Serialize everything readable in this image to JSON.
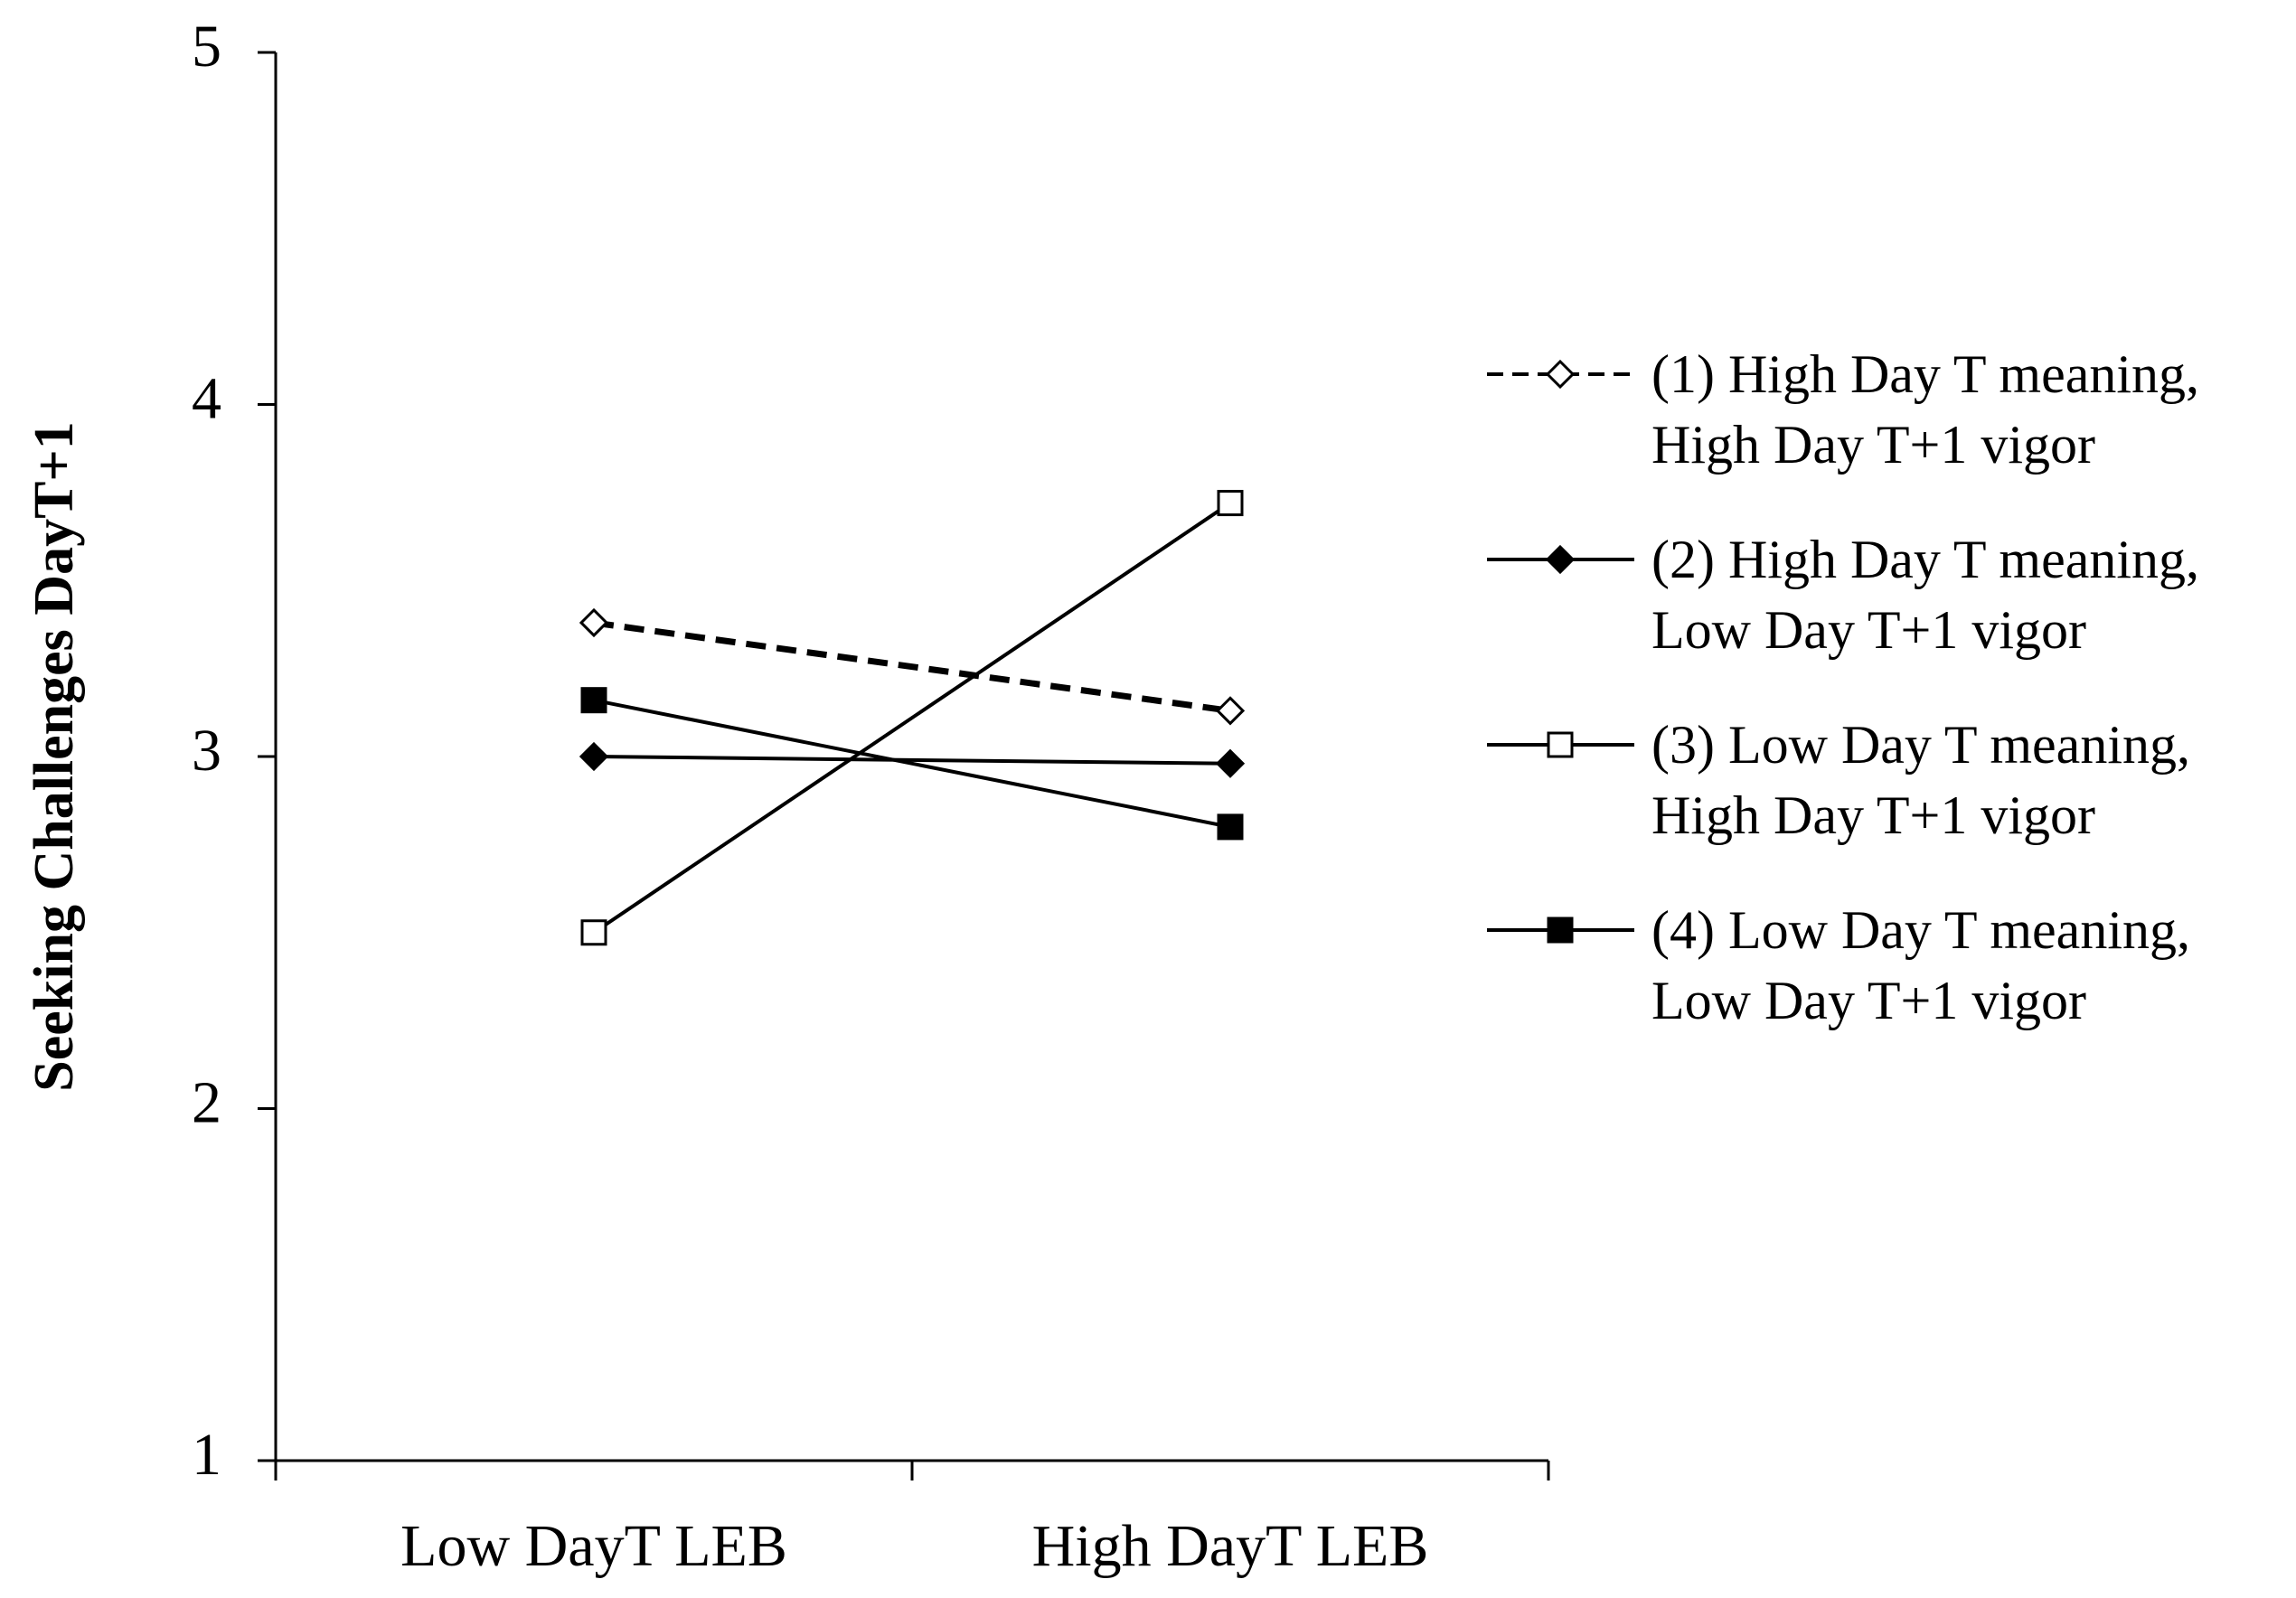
{
  "chart_data": {
    "type": "line",
    "y_label": "Seeking Challenges DayT+1",
    "categories": [
      "Low DayT LEB",
      "High DayT LEB"
    ],
    "ylim": [
      1,
      5
    ],
    "yticks": [
      1,
      2,
      3,
      4,
      5
    ],
    "series": [
      {
        "name": "(1) High Day T meaning, High Day T+1 vigor",
        "color": "#000000",
        "dashed": true,
        "marker": "diamond",
        "marker_filled": false,
        "values": [
          3.38,
          3.13
        ]
      },
      {
        "name": "(2) High Day T meaning, Low Day T+1 vigor",
        "color": "#000000",
        "dashed": false,
        "marker": "diamond",
        "marker_filled": true,
        "values": [
          3.0,
          2.98
        ]
      },
      {
        "name": "(3) Low Day T meaning, High Day T+1 vigor",
        "color": "#000000",
        "dashed": false,
        "marker": "square",
        "marker_filled": false,
        "values": [
          2.5,
          3.72
        ]
      },
      {
        "name": "(4) Low Day T meaning, Low Day T+1 vigor",
        "color": "#000000",
        "dashed": false,
        "marker": "square",
        "marker_filled": true,
        "values": [
          3.16,
          2.8
        ]
      }
    ]
  }
}
